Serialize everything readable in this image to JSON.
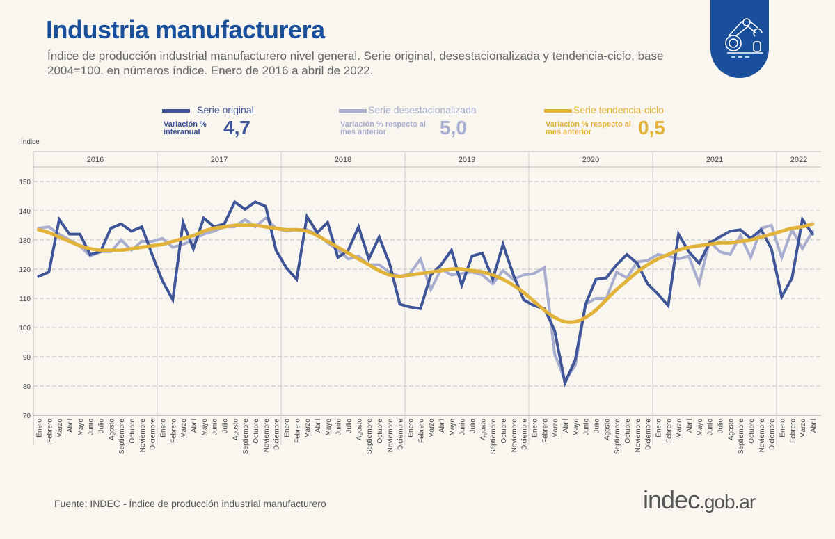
{
  "header": {
    "title": "Industria manufacturera",
    "subtitle": "Índice de producción industrial manufacturero nivel general. Serie original, desestacionalizada y tendencia-ciclo, base 2004=100, en números índice. Enero de 2016 a abril de 2022.",
    "badge_icon": "robot-arm-icon"
  },
  "legend": [
    {
      "label": "Serie original",
      "sub": "Variación % interanual",
      "value": "4,7",
      "color": "#3f5597"
    },
    {
      "label": "Serie desestacionalizada",
      "sub": "Variación % respecto al mes anterior",
      "value": "5,0",
      "color": "#a9aed0"
    },
    {
      "label": "Serie tendencia-ciclo",
      "sub": "Variación % respecto al mes anterior",
      "value": "0,5",
      "color": "#e2b33a"
    }
  ],
  "footer": {
    "source": "Fuente: INDEC - Índice de producción industrial manufacturero",
    "logo": "indec.gob.ar"
  },
  "chart_data": {
    "type": "line",
    "ylabel": "Índice",
    "ylim": [
      70,
      150
    ],
    "yticks": [
      70,
      80,
      90,
      100,
      110,
      120,
      130,
      140,
      150
    ],
    "grid": true,
    "years": [
      "2016",
      "2017",
      "2018",
      "2019",
      "2020",
      "2021",
      "2022"
    ],
    "months": [
      "Enero",
      "Febrero",
      "Marzo",
      "Abril",
      "Mayo",
      "Junio",
      "Julio",
      "Agosto",
      "Septiembre",
      "Octubre",
      "Noviembre",
      "Diciembre"
    ],
    "x_start": "2016-01",
    "x_end": "2022-04",
    "series": [
      {
        "name": "Serie original",
        "color": "#3f5597",
        "values": [
          117.5,
          119,
          137,
          132,
          132,
          125,
          126,
          134,
          135.5,
          133,
          134.5,
          125,
          116,
          109.5,
          136,
          127,
          137.5,
          134.5,
          135.5,
          143,
          140.5,
          143,
          141.5,
          126.5,
          120.5,
          116.5,
          138,
          132.5,
          136,
          124,
          126.5,
          134.5,
          123.5,
          131,
          122,
          108,
          107,
          106.5,
          118,
          121.5,
          126.5,
          114.5,
          124.5,
          125.5,
          116.5,
          128.5,
          118,
          109.5,
          107.5,
          106.5,
          99,
          81,
          89,
          108,
          116.5,
          117,
          121.5,
          125,
          122,
          115,
          111.5,
          107.5,
          132,
          126,
          122,
          129,
          131,
          133,
          133.5,
          130.5,
          133.5,
          127,
          110.5,
          117,
          137,
          132
        ]
      },
      {
        "name": "Serie desestacionalizada",
        "color": "#a9aed0",
        "values": [
          134,
          134.5,
          132,
          130,
          128,
          124.5,
          126,
          126,
          130,
          126.5,
          129.5,
          129.5,
          130.5,
          127.5,
          128.5,
          130,
          132,
          133,
          134.5,
          134.5,
          137,
          134.5,
          137.5,
          134,
          133,
          133.5,
          133.5,
          132,
          129,
          126.5,
          123.5,
          124.5,
          121.5,
          121.5,
          119,
          117.5,
          118.5,
          123.5,
          113,
          120,
          118,
          118.5,
          119,
          118,
          115,
          119.5,
          116.5,
          118,
          118.5,
          120.5,
          91,
          82,
          87,
          108,
          110,
          110,
          119,
          117,
          122.5,
          123,
          125,
          124.5,
          123.5,
          124.5,
          115,
          129.5,
          126,
          125,
          131.5,
          124,
          134,
          135,
          124,
          133.5,
          127,
          133
        ]
      },
      {
        "name": "Serie tendencia-ciclo",
        "color": "#e2b33a",
        "values": [
          133.5,
          132.5,
          131,
          129.5,
          128,
          127,
          126.5,
          126.5,
          126.5,
          127,
          127.5,
          128,
          128.5,
          129.5,
          130.5,
          131.5,
          133,
          134,
          134.5,
          135,
          135,
          135,
          134.5,
          134,
          133.5,
          133.5,
          133,
          131.5,
          129.5,
          127.5,
          125.5,
          123.5,
          121.5,
          119.5,
          118,
          117.5,
          118,
          118.5,
          119,
          119.5,
          120,
          120,
          119.5,
          119,
          118,
          116.5,
          114.5,
          112,
          109,
          106,
          103.5,
          102,
          102,
          103.5,
          106,
          109.5,
          113,
          116,
          119,
          121.5,
          123.5,
          125,
          126.5,
          127.5,
          128,
          128.5,
          129,
          129,
          129.5,
          130,
          131,
          132,
          133,
          134,
          134.5,
          135.5
        ]
      }
    ]
  }
}
